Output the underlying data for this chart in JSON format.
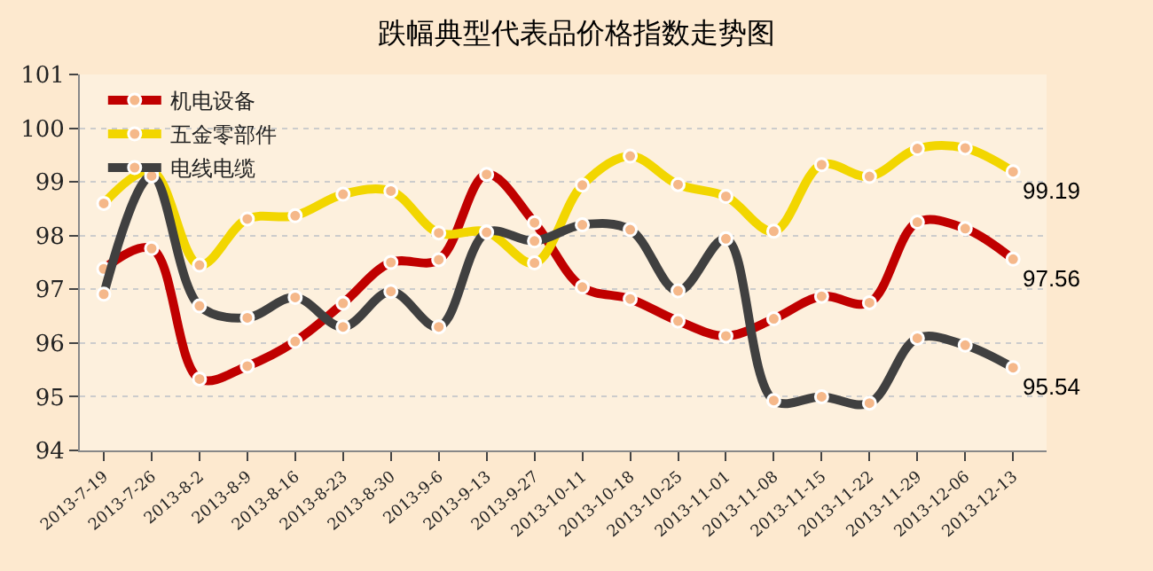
{
  "chart_data": {
    "type": "line",
    "title": "跌幅典型代表品价格指数走势图",
    "categories": [
      "2013-7-19",
      "2013-7-26",
      "2013-8-2",
      "2013-8-9",
      "2013-8-16",
      "2013-8-23",
      "2013-8-30",
      "2013-9-6",
      "2013-9-13",
      "2013-9-27",
      "2013-10-11",
      "2013-10-18",
      "2013-10-25",
      "2013-11-01",
      "2013-11-08",
      "2013-11-15",
      "2013-11-22",
      "2013-11-29",
      "2013-12-06",
      "2013-12-13"
    ],
    "series": [
      {
        "name": "机电设备",
        "color": "#c00000",
        "values": [
          97.38,
          97.76,
          95.33,
          95.57,
          96.03,
          96.74,
          97.5,
          97.55,
          99.14,
          98.24,
          97.04,
          96.82,
          96.41,
          96.13,
          96.45,
          96.87,
          96.75,
          98.25,
          98.13,
          97.56
        ],
        "value_labels": [
          null,
          null,
          null,
          null,
          null,
          null,
          null,
          null,
          null,
          null,
          null,
          null,
          null,
          null,
          null,
          null,
          null,
          null,
          null,
          "97.56"
        ]
      },
      {
        "name": "五金零部件",
        "color": "#f2d600",
        "values": [
          98.6,
          99.2,
          97.45,
          98.31,
          98.37,
          98.77,
          98.83,
          98.05,
          98.07,
          97.49,
          98.94,
          99.48,
          98.95,
          98.73,
          98.08,
          99.32,
          99.1,
          99.62,
          99.63,
          99.19
        ],
        "value_labels": [
          null,
          null,
          null,
          null,
          null,
          null,
          null,
          null,
          null,
          null,
          null,
          null,
          null,
          null,
          null,
          null,
          null,
          null,
          null,
          "99.19"
        ]
      },
      {
        "name": "电线电缆",
        "color": "#404040",
        "values": [
          96.91,
          99.11,
          96.69,
          96.47,
          96.85,
          96.3,
          96.96,
          96.3,
          98.06,
          97.9,
          98.2,
          98.11,
          96.97,
          97.94,
          94.93,
          95.0,
          94.88,
          96.09,
          95.96,
          95.54
        ],
        "value_labels": [
          null,
          null,
          null,
          null,
          null,
          null,
          null,
          null,
          null,
          null,
          null,
          null,
          null,
          null,
          null,
          null,
          null,
          null,
          null,
          "95.54"
        ]
      }
    ],
    "ylim": [
      94,
      101
    ],
    "yticks": [
      94,
      95,
      96,
      97,
      98,
      99,
      100,
      101
    ],
    "grid": "y",
    "legend": "top left",
    "marker": "circle",
    "line_style": "solid"
  }
}
